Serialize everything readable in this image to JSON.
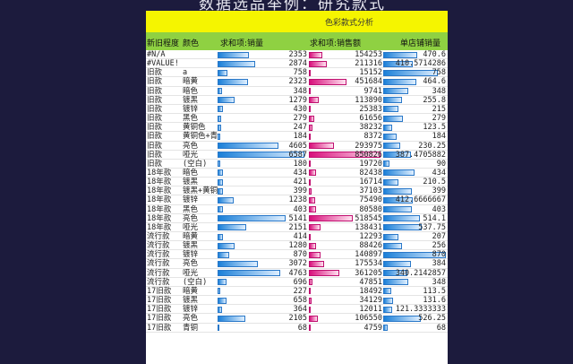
{
  "title": "数据选品举例：研究款式",
  "banner": "色彩款式分析",
  "headers": {
    "age": "新旧程度",
    "color": "颜色",
    "qty": "求和项:销量",
    "amount": "求和项:销售额",
    "per_store": "单店铺销量"
  },
  "colors": {
    "background": "#1c1b3d",
    "banner": "#f5f500",
    "header": "#8fd142",
    "bar_blue": "#1a7fd8",
    "bar_pink": "#d8107c"
  },
  "rows": [
    [
      "#N/A",
      "",
      "2353",
      "154253",
      "470.6"
    ],
    [
      "#VALUE!",
      "",
      "2874",
      "211316",
      "410.5714286"
    ],
    [
      "旧款",
      "a",
      "758",
      "15152",
      "758"
    ],
    [
      "旧款",
      "暗黄",
      "2323",
      "451684",
      "464.6"
    ],
    [
      "旧款",
      "暗色",
      "348",
      "9741",
      "348"
    ],
    [
      "旧款",
      "镀黑",
      "1279",
      "113890",
      "255.8"
    ],
    [
      "旧款",
      "镀锌",
      "430",
      "25383",
      "215"
    ],
    [
      "旧款",
      "黑色",
      "279",
      "61656",
      "279"
    ],
    [
      "旧款",
      "黄铜色",
      "247",
      "38232",
      "123.5"
    ],
    [
      "旧款",
      "黄铜色+青",
      "184",
      "8372",
      "184"
    ],
    [
      "旧款",
      "亮色",
      "4605",
      "293975",
      "230.25"
    ],
    [
      "旧款",
      "哑光",
      "6587",
      "850826",
      "387.4705882"
    ],
    [
      "旧款",
      "(空白)",
      "180",
      "19720",
      "90"
    ],
    [
      "18年款",
      "暗色",
      "434",
      "82438",
      "434"
    ],
    [
      "18年款",
      "镀黑",
      "421",
      "16714",
      "210.5"
    ],
    [
      "18年款",
      "镀黑+黄铜",
      "399",
      "37103",
      "399"
    ],
    [
      "18年款",
      "镀锌",
      "1238",
      "75490",
      "412.6666667"
    ],
    [
      "18年款",
      "黑色",
      "403",
      "80580",
      "403"
    ],
    [
      "18年款",
      "亮色",
      "5141",
      "518545",
      "514.1"
    ],
    [
      "18年款",
      "哑光",
      "2151",
      "138431",
      "537.75"
    ],
    [
      "流行款",
      "暗黄",
      "414",
      "12293",
      "207"
    ],
    [
      "流行款",
      "镀黑",
      "1280",
      "88426",
      "256"
    ],
    [
      "流行款",
      "镀锌",
      "870",
      "140897",
      "870"
    ],
    [
      "流行款",
      "亮色",
      "3072",
      "175534",
      "384"
    ],
    [
      "流行款",
      "哑光",
      "4763",
      "361205",
      "340.2142857"
    ],
    [
      "流行款",
      "(空白)",
      "696",
      "47851",
      "348"
    ],
    [
      "17旧款",
      "暗黄",
      "227",
      "18492",
      "113.5"
    ],
    [
      "17旧款",
      "镀黑",
      "658",
      "34129",
      "131.6"
    ],
    [
      "17旧款",
      "镀锌",
      "364",
      "12011",
      "121.3333333"
    ],
    [
      "17旧款",
      "亮色",
      "2105",
      "106550",
      "526.25"
    ],
    [
      "17旧款",
      "青铜",
      "68",
      "4759",
      "68"
    ]
  ]
}
